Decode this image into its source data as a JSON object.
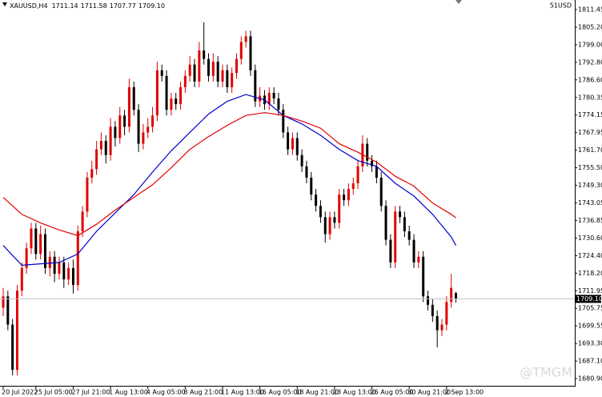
{
  "chart_data": {
    "type": "candlestick",
    "header": {
      "symbol": "XAUUSD,H4",
      "prices": [
        "1711.14",
        "1711.58",
        "1707.77",
        "1709.10"
      ]
    },
    "account_label": "51USD",
    "watermark": "@TMGM",
    "up_color": "#e00000",
    "down_color": "#000000",
    "ohlc": [
      [
        1706,
        1713,
        1703,
        1710
      ],
      [
        1710,
        1712,
        1698,
        1700
      ],
      [
        1700,
        1702,
        1682,
        1684
      ],
      [
        1684,
        1714,
        1682,
        1712
      ],
      [
        1712,
        1722,
        1710,
        1720
      ],
      [
        1720,
        1729,
        1718,
        1727
      ],
      [
        1727,
        1736,
        1725,
        1734
      ],
      [
        1734,
        1736,
        1723,
        1725
      ],
      [
        1725,
        1735,
        1723,
        1732
      ],
      [
        1732,
        1734,
        1718,
        1720
      ],
      [
        1720,
        1726,
        1717,
        1724
      ],
      [
        1724,
        1726,
        1715,
        1718
      ],
      [
        1718,
        1724,
        1716,
        1722
      ],
      [
        1722,
        1724,
        1713,
        1716
      ],
      [
        1716,
        1722,
        1714,
        1720
      ],
      [
        1720,
        1723,
        1711,
        1714
      ],
      [
        1714,
        1735,
        1712,
        1733
      ],
      [
        1733,
        1742,
        1731,
        1740
      ],
      [
        1740,
        1754,
        1738,
        1752
      ],
      [
        1752,
        1758,
        1750,
        1755
      ],
      [
        1755,
        1765,
        1753,
        1762
      ],
      [
        1762,
        1768,
        1760,
        1765
      ],
      [
        1765,
        1767,
        1757,
        1760
      ],
      [
        1760,
        1773,
        1758,
        1770
      ],
      [
        1770,
        1772,
        1763,
        1766
      ],
      [
        1766,
        1777,
        1764,
        1774
      ],
      [
        1774,
        1776,
        1767,
        1770
      ],
      [
        1770,
        1787,
        1768,
        1784
      ],
      [
        1784,
        1786,
        1774,
        1776
      ],
      [
        1776,
        1778,
        1761,
        1764
      ],
      [
        1764,
        1771,
        1762,
        1768
      ],
      [
        1768,
        1773,
        1766,
        1770
      ],
      [
        1770,
        1777,
        1768,
        1774
      ],
      [
        1774,
        1793,
        1772,
        1790
      ],
      [
        1790,
        1792,
        1786,
        1788
      ],
      [
        1788,
        1790,
        1774,
        1776
      ],
      [
        1776,
        1782,
        1774,
        1780
      ],
      [
        1780,
        1782,
        1776,
        1778
      ],
      [
        1778,
        1786,
        1776,
        1784
      ],
      [
        1784,
        1790,
        1782,
        1788
      ],
      [
        1788,
        1795,
        1786,
        1792
      ],
      [
        1792,
        1794,
        1784,
        1786
      ],
      [
        1786,
        1800,
        1784,
        1797
      ],
      [
        1797,
        1807,
        1792,
        1794
      ],
      [
        1794,
        1796,
        1786,
        1788
      ],
      [
        1788,
        1796,
        1786,
        1793
      ],
      [
        1793,
        1795,
        1784,
        1786
      ],
      [
        1786,
        1792,
        1784,
        1790
      ],
      [
        1790,
        1792,
        1782,
        1784
      ],
      [
        1784,
        1791,
        1782,
        1789
      ],
      [
        1789,
        1796,
        1787,
        1794
      ],
      [
        1794,
        1802,
        1792,
        1800
      ],
      [
        1800,
        1804,
        1798,
        1802
      ],
      [
        1802,
        1804,
        1788,
        1790
      ],
      [
        1790,
        1792,
        1777,
        1779
      ],
      [
        1779,
        1784,
        1777,
        1781
      ],
      [
        1781,
        1783,
        1776,
        1778
      ],
      [
        1778,
        1784,
        1776,
        1782
      ],
      [
        1782,
        1784,
        1778,
        1780
      ],
      [
        1780,
        1782,
        1774,
        1776
      ],
      [
        1776,
        1778,
        1766,
        1768
      ],
      [
        1768,
        1770,
        1760,
        1762
      ],
      [
        1762,
        1768,
        1760,
        1766
      ],
      [
        1766,
        1768,
        1758,
        1760
      ],
      [
        1760,
        1762,
        1754,
        1756
      ],
      [
        1756,
        1758,
        1750,
        1752
      ],
      [
        1752,
        1754,
        1744,
        1746
      ],
      [
        1746,
        1748,
        1740,
        1742
      ],
      [
        1742,
        1744,
        1736,
        1738
      ],
      [
        1738,
        1740,
        1729,
        1732
      ],
      [
        1732,
        1740,
        1730,
        1738
      ],
      [
        1738,
        1740,
        1734,
        1736
      ],
      [
        1736,
        1748,
        1734,
        1746
      ],
      [
        1746,
        1748,
        1742,
        1744
      ],
      [
        1744,
        1750,
        1742,
        1748
      ],
      [
        1748,
        1752,
        1746,
        1750
      ],
      [
        1750,
        1758,
        1748,
        1756
      ],
      [
        1756,
        1767,
        1754,
        1764
      ],
      [
        1764,
        1766,
        1756,
        1758
      ],
      [
        1758,
        1760,
        1754,
        1756
      ],
      [
        1756,
        1758,
        1750,
        1752
      ],
      [
        1752,
        1754,
        1740,
        1742
      ],
      [
        1742,
        1744,
        1728,
        1730
      ],
      [
        1730,
        1732,
        1720,
        1722
      ],
      [
        1722,
        1742,
        1720,
        1740
      ],
      [
        1740,
        1742,
        1736,
        1738
      ],
      [
        1738,
        1740,
        1731,
        1733
      ],
      [
        1733,
        1735,
        1728,
        1730
      ],
      [
        1730,
        1732,
        1720,
        1722
      ],
      [
        1722,
        1726,
        1720,
        1724
      ],
      [
        1724,
        1726,
        1708,
        1710
      ],
      [
        1710,
        1712,
        1705,
        1707
      ],
      [
        1707,
        1709,
        1701,
        1703
      ],
      [
        1703,
        1705,
        1692,
        1698
      ],
      [
        1698,
        1702,
        1696,
        1700
      ],
      [
        1700,
        1710,
        1698,
        1708
      ],
      [
        1708,
        1718,
        1706,
        1713
      ],
      [
        1711.14,
        1711.58,
        1707.77,
        1709.1
      ]
    ],
    "series": [
      {
        "color": "#0000cc",
        "x": [
          0,
          4,
          8,
          12,
          16,
          20,
          24,
          28,
          32,
          36,
          40,
          44,
          48,
          52,
          56,
          60,
          64,
          68,
          72,
          76,
          80,
          84,
          88,
          92,
          96,
          97
        ],
        "values": [
          1728,
          1721,
          1721.5,
          1722,
          1725,
          1733,
          1739.5,
          1746,
          1754,
          1761.5,
          1768,
          1774.5,
          1779,
          1781.4,
          1779.5,
          1774,
          1771,
          1767,
          1762,
          1758,
          1756,
          1750,
          1745.5,
          1739,
          1731,
          1728
        ]
      },
      {
        "color": "#e00000",
        "x": [
          0,
          4,
          8,
          12,
          16,
          20,
          24,
          28,
          32,
          36,
          40,
          44,
          48,
          52,
          56,
          60,
          64,
          68,
          72,
          76,
          80,
          84,
          88,
          92,
          96,
          97
        ],
        "values": [
          1745,
          1739,
          1736,
          1733.5,
          1731.5,
          1735.5,
          1740.5,
          1745,
          1749.5,
          1755.5,
          1762,
          1766.5,
          1770.5,
          1774,
          1775,
          1774,
          1772,
          1769.5,
          1764,
          1761,
          1757.5,
          1752.5,
          1749,
          1743,
          1739,
          1737.8
        ]
      }
    ],
    "xlim": [
      0,
      97
    ],
    "xticks": [
      {
        "value": 0,
        "label": "20 Jul 2022"
      },
      {
        "value": 7,
        "label": "25 Jul 05:00"
      },
      {
        "value": 15,
        "label": "27 Jul 21:00"
      },
      {
        "value": 23,
        "label": "1 Aug 13:00"
      },
      {
        "value": 31,
        "label": "4 Aug 05:00"
      },
      {
        "value": 39,
        "label": "8 Aug 21:00"
      },
      {
        "value": 47,
        "label": "11 Aug 13:00"
      },
      {
        "value": 55,
        "label": "16 Aug 05:00"
      },
      {
        "value": 63,
        "label": "18 Aug 21:00"
      },
      {
        "value": 71,
        "label": "23 Aug 13:00"
      },
      {
        "value": 79,
        "label": "26 Aug 05:00"
      },
      {
        "value": 87,
        "label": "30 Aug 21:00"
      },
      {
        "value": 95,
        "label": "2 Sep 13:00"
      }
    ],
    "ylim": [
      1678.35,
      1814.85
    ],
    "yticks": [
      {
        "value": 1811.45,
        "label": "1811.45"
      },
      {
        "value": 1805.2,
        "label": "1805.20"
      },
      {
        "value": 1799,
        "label": "1799.00"
      },
      {
        "value": 1792.8,
        "label": "1792.80"
      },
      {
        "value": 1786.6,
        "label": "1786.60"
      },
      {
        "value": 1780.35,
        "label": "1780.35"
      },
      {
        "value": 1774.15,
        "label": "1774.15"
      },
      {
        "value": 1767.95,
        "label": "1767.95"
      },
      {
        "value": 1761.7,
        "label": "1761.70"
      },
      {
        "value": 1755.5,
        "label": "1755.50"
      },
      {
        "value": 1749.3,
        "label": "1749.30"
      },
      {
        "value": 1743.05,
        "label": "1743.05"
      },
      {
        "value": 1736.85,
        "label": "1736.85"
      },
      {
        "value": 1730.6,
        "label": "1730.60"
      },
      {
        "value": 1724.4,
        "label": "1724.40"
      },
      {
        "value": 1718.2,
        "label": "1718.20"
      },
      {
        "value": 1711.95,
        "label": "1711.95"
      },
      {
        "value": 1705.75,
        "label": "1705.75"
      },
      {
        "value": 1699.55,
        "label": "1699.55"
      },
      {
        "value": 1693.3,
        "label": "1693.30"
      },
      {
        "value": 1687.1,
        "label": "1687.10"
      },
      {
        "value": 1680.9,
        "label": "1680.90"
      }
    ]
  }
}
